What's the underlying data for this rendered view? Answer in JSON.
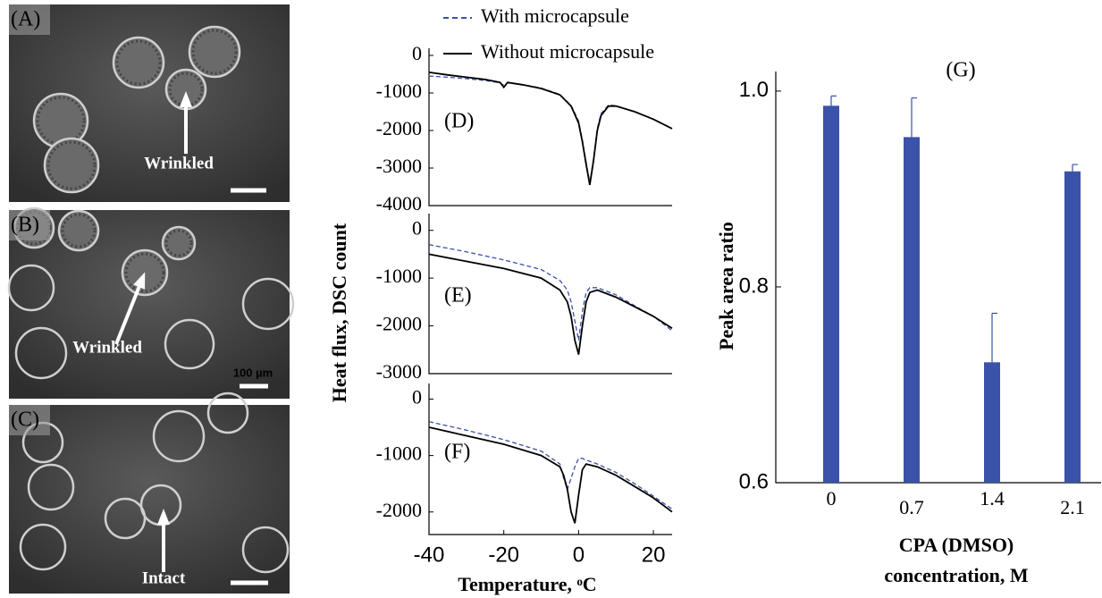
{
  "micrographs": [
    {
      "label": "(A)",
      "annotation": "Wrinkled"
    },
    {
      "label": "(B)",
      "annotation": "Wrinkled",
      "scale_bar": "100 µm"
    },
    {
      "label": "(C)",
      "annotation": "Intact"
    }
  ],
  "chart_data": [
    {
      "type": "line",
      "panel_label": "(D)",
      "x": [
        -40,
        -35,
        -30,
        -25,
        -21,
        -20,
        -19,
        -15,
        -10,
        -5,
        -2,
        0,
        1,
        2,
        3,
        4,
        5,
        6,
        8,
        10,
        15,
        20,
        25
      ],
      "series": [
        {
          "name": "With microcapsule",
          "color": "#3b4fa8",
          "dashed": true,
          "values": [
            -550,
            -580,
            -620,
            -670,
            -730,
            -800,
            -730,
            -780,
            -870,
            -1040,
            -1330,
            -1750,
            -2250,
            -2850,
            -3400,
            -2750,
            -1950,
            -1550,
            -1320,
            -1340,
            -1500,
            -1700,
            -1950
          ]
        },
        {
          "name": "Without microcapsule",
          "color": "#000000",
          "dashed": false,
          "values": [
            -450,
            -520,
            -580,
            -640,
            -720,
            -850,
            -720,
            -780,
            -880,
            -1050,
            -1350,
            -1800,
            -2300,
            -2900,
            -3450,
            -2800,
            -2000,
            -1600,
            -1350,
            -1350,
            -1500,
            -1700,
            -1950
          ]
        }
      ],
      "xlim": [
        -40,
        25
      ],
      "ylim": [
        -4000,
        0
      ],
      "yticks": [
        0,
        -1000,
        -2000,
        -3000,
        -4000
      ]
    },
    {
      "type": "line",
      "panel_label": "(E)",
      "ylabel": "Heat flux, DSC count",
      "x": [
        -40,
        -30,
        -20,
        -10,
        -5,
        -3,
        -2,
        -1,
        0,
        1,
        2,
        3,
        5,
        10,
        15,
        20,
        25
      ],
      "series": [
        {
          "color": "#3b4fa8",
          "dashed": true,
          "values": [
            -300,
            -450,
            -620,
            -820,
            -1050,
            -1250,
            -1500,
            -1900,
            -2300,
            -1700,
            -1300,
            -1200,
            -1200,
            -1350,
            -1580,
            -1800,
            -2100
          ]
        },
        {
          "color": "#000000",
          "dashed": false,
          "values": [
            -500,
            -650,
            -800,
            -1000,
            -1250,
            -1500,
            -1800,
            -2300,
            -2600,
            -2000,
            -1500,
            -1300,
            -1250,
            -1400,
            -1600,
            -1800,
            -2050
          ]
        }
      ],
      "xlim": [
        -40,
        25
      ],
      "ylim": [
        -3000,
        200
      ],
      "yticks": [
        0,
        -1000,
        -2000,
        -3000
      ]
    },
    {
      "type": "line",
      "panel_label": "(F)",
      "xlabel": "Temperature, ᵒC",
      "x": [
        -40,
        -30,
        -20,
        -10,
        -5,
        -4,
        -3,
        -2,
        -1,
        0,
        1,
        2,
        5,
        10,
        15,
        20,
        25
      ],
      "series": [
        {
          "color": "#3b4fa8",
          "dashed": true,
          "values": [
            -400,
            -550,
            -720,
            -920,
            -1150,
            -1400,
            -1600,
            -1400,
            -1200,
            -1050,
            -1050,
            -1080,
            -1150,
            -1300,
            -1500,
            -1720,
            -1950
          ]
        },
        {
          "color": "#000000",
          "dashed": false,
          "values": [
            -500,
            -650,
            -800,
            -1000,
            -1200,
            -1350,
            -1600,
            -2000,
            -2200,
            -1700,
            -1250,
            -1150,
            -1200,
            -1350,
            -1550,
            -1750,
            -2000
          ]
        }
      ],
      "xlim": [
        -40,
        25
      ],
      "ylim": [
        -2400,
        150
      ],
      "yticks": [
        0,
        -1000,
        -2000
      ],
      "xticks": [
        -40,
        -20,
        0,
        20
      ]
    },
    {
      "type": "bar",
      "title": "(G)",
      "ylabel": "Peak area ratio",
      "xlabel": [
        "CPA (DMSO)",
        "concentration, M"
      ],
      "categories": [
        "0",
        "0.7",
        "1.4",
        "2.1"
      ],
      "values": [
        0.985,
        0.953,
        0.723,
        0.918
      ],
      "errors": [
        0.01,
        0.04,
        0.05,
        0.007
      ],
      "color": "#3a52a8",
      "ylim": [
        0.6,
        1.02
      ],
      "yticks": [
        0.6,
        0.8,
        {
          "value": 1.0,
          "label": "1.0"
        }
      ]
    }
  ]
}
